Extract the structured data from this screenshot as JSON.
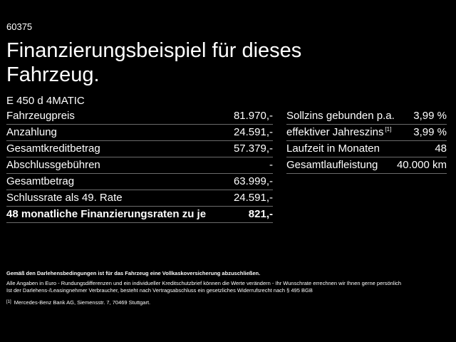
{
  "code": "60375",
  "headline": "Finanzierungsbeispiel für dieses Fahrzeug.",
  "model": "E 450 d 4MATIC",
  "left_rows": [
    {
      "label": "Fahrzeugpreis",
      "value": "81.970,-"
    },
    {
      "label": "Anzahlung",
      "value": "24.591,-"
    },
    {
      "label": "Gesamtkreditbetrag",
      "value": "57.379,-"
    },
    {
      "label": "Abschlussgebühren",
      "value": "-"
    },
    {
      "label": "Gesamtbetrag",
      "value": "63.999,-"
    },
    {
      "label": "Schlussrate als 49. Rate",
      "value": "24.591,-"
    },
    {
      "label": "48 monatliche Finanzierungsraten zu je",
      "value": "821,-"
    }
  ],
  "right_rows": [
    {
      "label": "Sollzins gebunden p.a.",
      "value": "3,99 %"
    },
    {
      "label": "effektiver Jahreszins",
      "footnote": "[1]",
      "value": "3,99 %"
    },
    {
      "label": "Laufzeit in Monaten",
      "value": "48"
    },
    {
      "label": "Gesamtlaufleistung",
      "value": "40.000 km"
    }
  ],
  "notes": {
    "insurance": "Gemäß den Darlehensbedingungen ist für das Fahrzeug eine Vollkaskoversicherung abzuschließen.",
    "disclaimer_line1": "Alle Angaben in Euro - Rundungsdifferenzen und ein individueller Kreditschutzbrief können die Werte verändern - Ihr Wunschrate errechnen wir Ihnen gerne persönlich",
    "disclaimer_line2": "Ist der Darlehens-/Leasingnehmer Verbraucher, besteht nach Vertragsabschluss ein gesetzliches Widerrufsrecht nach § 495 BGB",
    "footnote_marker": "[1]",
    "footnote_text": "Mercedes-Benz Bank AG, Siemensstr. 7, 70469 Stuttgart."
  },
  "colors": {
    "background": "#000000",
    "text": "#ffffff",
    "divider": "#6b6b6b"
  }
}
